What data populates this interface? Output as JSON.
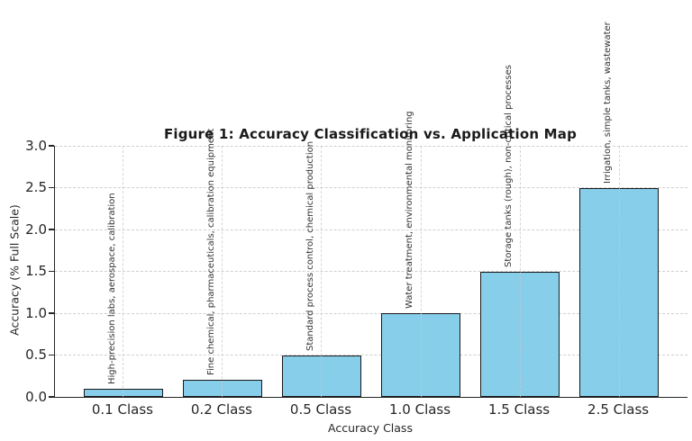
{
  "chart_data": {
    "type": "bar",
    "title": "Figure 1: Accuracy Classification vs. Application Map",
    "xlabel": "Accuracy Class",
    "ylabel": "Accuracy (% Full Scale)",
    "categories": [
      "0.1 Class",
      "0.2 Class",
      "0.5 Class",
      "1.0 Class",
      "1.5 Class",
      "2.5 Class"
    ],
    "values": [
      0.1,
      0.2,
      0.5,
      1.0,
      1.5,
      2.5
    ],
    "annotations": [
      "High-precision labs, aerospace, calibration",
      "Fine chemical, pharmaceuticals, calibration equipment",
      "Standard process control, chemical production",
      "Water treatment, environmental monitoring",
      "Storage tanks (rough), non-critical processes",
      "Irrigation, simple tanks, wastewater"
    ],
    "yticks": [
      "0.0",
      "0.5",
      "1.0",
      "1.5",
      "2.0",
      "2.5",
      "3.0"
    ],
    "ylim": [
      0,
      3.0
    ],
    "grid": "dashed-both-axes",
    "legend_position": "none",
    "bar_color": "#87CEEB",
    "bar_edge_color": "#1a1a1a",
    "grid_color": "#cfcfcf",
    "text_color": "#262626"
  }
}
